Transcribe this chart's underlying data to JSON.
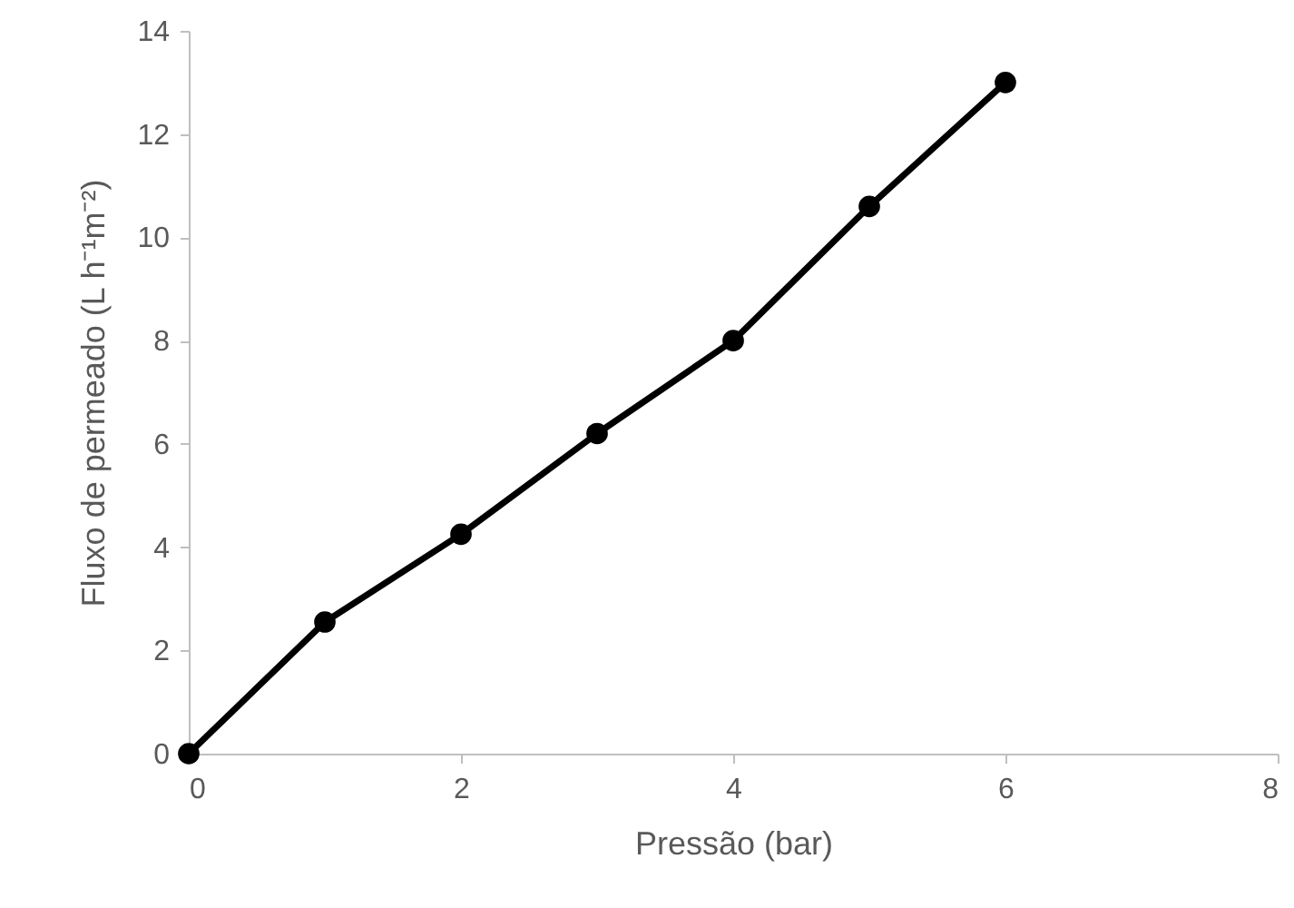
{
  "chart_data": {
    "type": "line",
    "xlabel": "Pressão (bar)",
    "ylabel": "Fluxo de permeado (L h⁻¹m⁻²)",
    "x": [
      0,
      1,
      2,
      3,
      4,
      5,
      6
    ],
    "series": [
      {
        "color": "#000000",
        "values": [
          0,
          2.55,
          4.25,
          6.2,
          8.0,
          10.6,
          13.0
        ]
      }
    ],
    "xlim": [
      0,
      8
    ],
    "xticks": [
      0,
      2,
      4,
      6,
      8
    ],
    "ylim": [
      0,
      14
    ],
    "yticks": [
      0,
      2,
      4,
      6,
      8,
      10,
      12,
      14
    ],
    "grid": false,
    "marker": "circle",
    "line_style": "solid"
  }
}
